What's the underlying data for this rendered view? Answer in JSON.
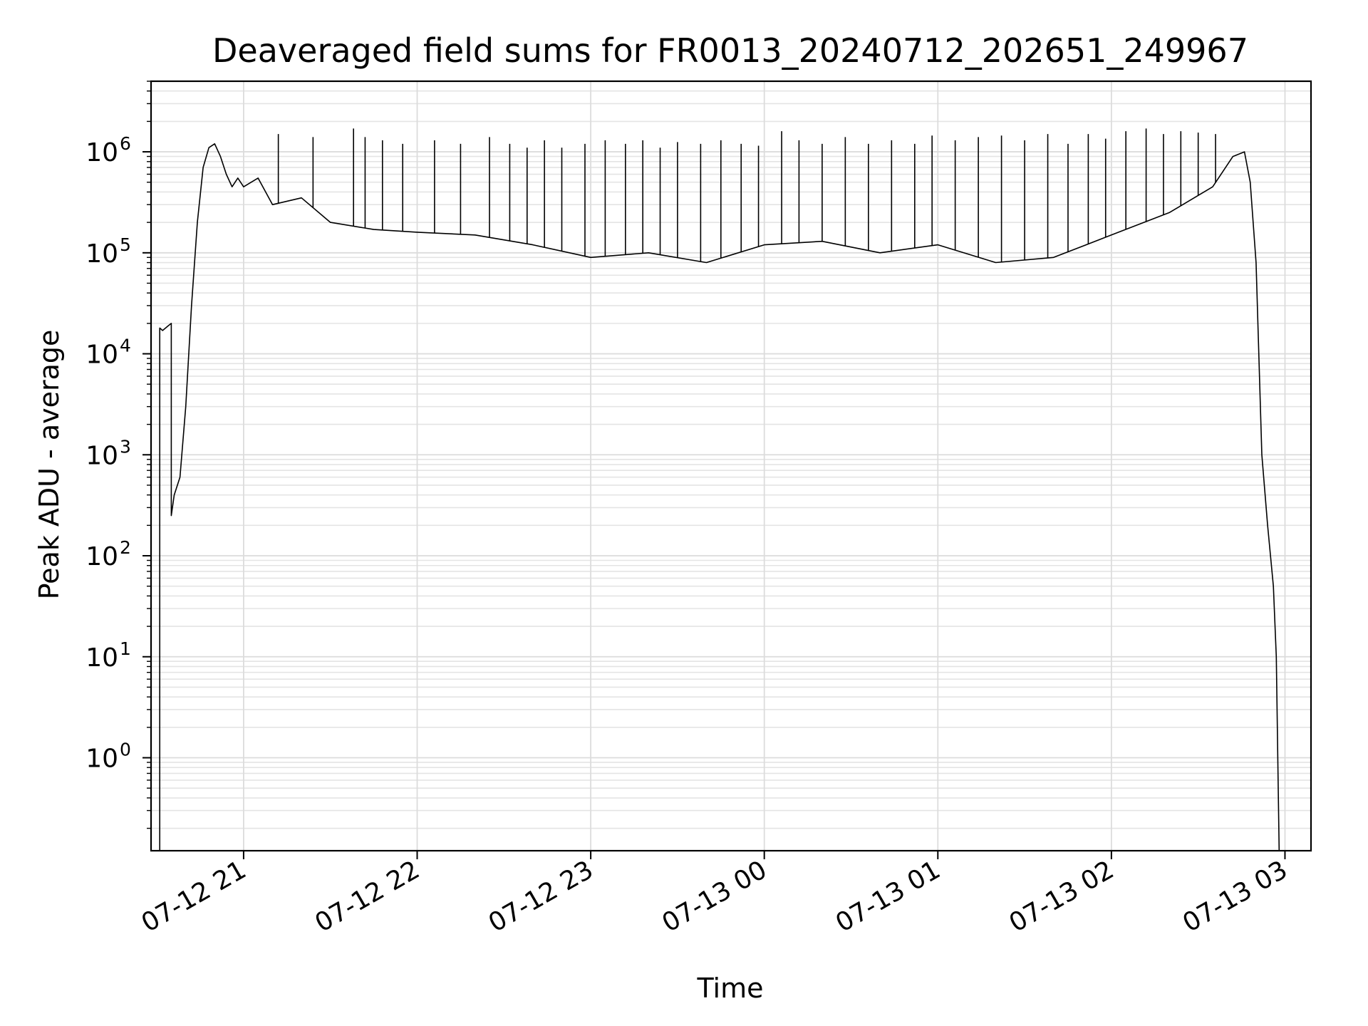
{
  "chart_data": {
    "type": "line",
    "title": "Deaveraged field sums for FR0013_20240712_202651_249967",
    "xlabel": "Time",
    "ylabel": "Peak ADU - average",
    "yscale": "log",
    "ylim": [
      0.12,
      5000000
    ],
    "xlim": [
      "2024-07-12 20:28",
      "2024-07-13 03:09"
    ],
    "grid": true,
    "line_color": "#000000",
    "x_ticks": [
      {
        "time": "2024-07-12 21:00",
        "label": "07-12 21"
      },
      {
        "time": "2024-07-12 22:00",
        "label": "07-12 22"
      },
      {
        "time": "2024-07-12 23:00",
        "label": "07-12 23"
      },
      {
        "time": "2024-07-13 00:00",
        "label": "07-13 00"
      },
      {
        "time": "2024-07-13 01:00",
        "label": "07-13 01"
      },
      {
        "time": "2024-07-13 02:00",
        "label": "07-13 02"
      },
      {
        "time": "2024-07-13 03:00",
        "label": "07-13 03"
      }
    ],
    "y_ticks": [
      {
        "value": 1,
        "base": "10",
        "exp": "0"
      },
      {
        "value": 10,
        "base": "10",
        "exp": "1"
      },
      {
        "value": 100,
        "base": "10",
        "exp": "2"
      },
      {
        "value": 1000,
        "base": "10",
        "exp": "3"
      },
      {
        "value": 10000,
        "base": "10",
        "exp": "4"
      },
      {
        "value": 100000,
        "base": "10",
        "exp": "5"
      },
      {
        "value": 1000000,
        "base": "10",
        "exp": "6"
      }
    ],
    "series": [
      {
        "x": [
          "2024-07-12 20:31",
          "2024-07-12 20:31",
          "2024-07-12 20:32",
          "2024-07-12 20:34",
          "2024-07-12 20:35",
          "2024-07-12 20:35",
          "2024-07-12 20:36",
          "2024-07-12 20:38",
          "2024-07-12 20:40",
          "2024-07-12 20:42",
          "2024-07-12 20:44",
          "2024-07-12 20:46",
          "2024-07-12 20:48",
          "2024-07-12 20:50",
          "2024-07-12 20:52",
          "2024-07-12 20:54",
          "2024-07-12 20:56",
          "2024-07-12 20:58",
          "2024-07-12 21:00",
          "2024-07-12 21:05",
          "2024-07-12 21:10",
          "2024-07-12 21:20",
          "2024-07-12 21:30",
          "2024-07-12 21:45",
          "2024-07-12 22:00",
          "2024-07-12 22:20",
          "2024-07-12 22:40",
          "2024-07-12 23:00",
          "2024-07-12 23:20",
          "2024-07-12 23:40",
          "2024-07-13 00:00",
          "2024-07-13 00:20",
          "2024-07-13 00:40",
          "2024-07-13 01:00",
          "2024-07-13 01:20",
          "2024-07-13 01:40",
          "2024-07-13 02:00",
          "2024-07-13 02:20",
          "2024-07-13 02:35",
          "2024-07-13 02:42",
          "2024-07-13 02:46",
          "2024-07-13 02:48",
          "2024-07-13 02:50",
          "2024-07-13 02:52",
          "2024-07-13 02:54",
          "2024-07-13 02:56",
          "2024-07-13 02:57",
          "2024-07-13 02:58"
        ],
        "y": [
          0.12,
          18000,
          17000,
          19000,
          20000,
          250,
          400,
          600,
          3000,
          30000,
          200000,
          700000,
          1100000,
          1200000,
          900000,
          600000,
          450000,
          550000,
          450000,
          550000,
          300000,
          350000,
          200000,
          170000,
          160000,
          150000,
          120000,
          90000,
          100000,
          80000,
          120000,
          130000,
          100000,
          120000,
          80000,
          90000,
          150000,
          250000,
          450000,
          900000,
          1000000,
          500000,
          80000,
          1000,
          200,
          50,
          10,
          0.12
        ]
      }
    ],
    "spikes": {
      "x": [
        "2024-07-12 21:12",
        "2024-07-12 21:24",
        "2024-07-12 21:38",
        "2024-07-12 21:42",
        "2024-07-12 21:48",
        "2024-07-12 21:55",
        "2024-07-12 22:06",
        "2024-07-12 22:15",
        "2024-07-12 22:25",
        "2024-07-12 22:32",
        "2024-07-12 22:38",
        "2024-07-12 22:44",
        "2024-07-12 22:50",
        "2024-07-12 22:58",
        "2024-07-12 23:05",
        "2024-07-12 23:12",
        "2024-07-12 23:18",
        "2024-07-12 23:24",
        "2024-07-12 23:30",
        "2024-07-12 23:38",
        "2024-07-12 23:45",
        "2024-07-12 23:52",
        "2024-07-12 23:58",
        "2024-07-13 00:06",
        "2024-07-13 00:12",
        "2024-07-13 00:20",
        "2024-07-13 00:28",
        "2024-07-13 00:36",
        "2024-07-13 00:44",
        "2024-07-13 00:52",
        "2024-07-13 00:58",
        "2024-07-13 01:06",
        "2024-07-13 01:14",
        "2024-07-13 01:22",
        "2024-07-13 01:30",
        "2024-07-13 01:38",
        "2024-07-13 01:45",
        "2024-07-13 01:52",
        "2024-07-13 01:58",
        "2024-07-13 02:05",
        "2024-07-13 02:12",
        "2024-07-13 02:18",
        "2024-07-13 02:24",
        "2024-07-13 02:30",
        "2024-07-13 02:36"
      ],
      "y": [
        1500000,
        1400000,
        1700000,
        1400000,
        1300000,
        1200000,
        1300000,
        1200000,
        1400000,
        1200000,
        1100000,
        1300000,
        1100000,
        1200000,
        1300000,
        1200000,
        1300000,
        1100000,
        1250000,
        1200000,
        1300000,
        1200000,
        1150000,
        1600000,
        1300000,
        1200000,
        1400000,
        1200000,
        1300000,
        1200000,
        1450000,
        1300000,
        1400000,
        1450000,
        1300000,
        1500000,
        1200000,
        1500000,
        1350000,
        1600000,
        1700000,
        1500000,
        1600000,
        1550000,
        1500000
      ]
    }
  }
}
